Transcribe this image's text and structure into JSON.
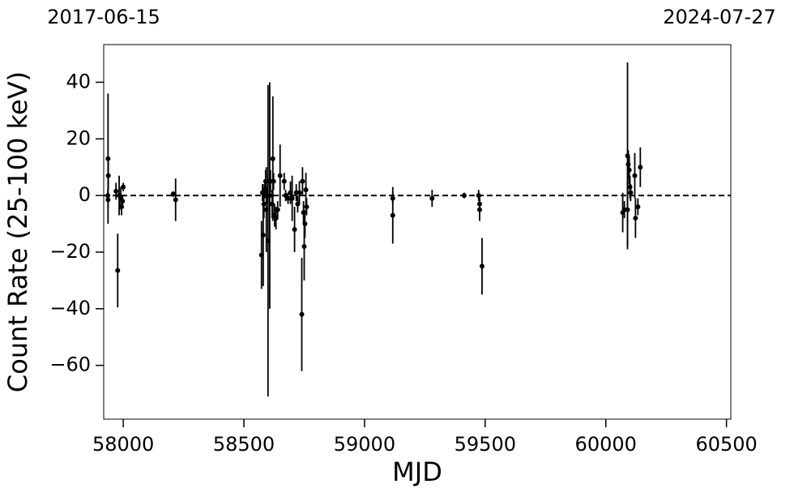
{
  "chart_data": {
    "type": "scatter",
    "xlabel": "MJD",
    "ylabel": "Count Rate (25-100 keV)",
    "xlim": [
      57919,
      60518
    ],
    "ylim": [
      -79,
      53.3
    ],
    "xticks": [
      58000,
      58500,
      59000,
      59500,
      60000,
      60500
    ],
    "yticks": [
      {
        "value": -60,
        "label": "−60"
      },
      {
        "value": -40,
        "label": "−40"
      },
      {
        "value": -20,
        "label": "−20"
      },
      0,
      20,
      40
    ],
    "top_xticks": [
      {
        "value": 57919,
        "label": "2017-06-15"
      },
      {
        "value": 60518,
        "label": "2024-07-27"
      }
    ],
    "hline": 0,
    "color": "#000000",
    "x": [
      57937,
      57938,
      57936,
      57937,
      57977,
      57970,
      57983,
      57990,
      57997,
      58000,
      57993,
      58207,
      58217,
      58573,
      58577,
      58580,
      58583,
      58587,
      58590,
      58593,
      58597,
      58600,
      58607,
      58610,
      58617,
      58620,
      58623,
      58627,
      58633,
      58640,
      58650,
      58667,
      58673,
      58683,
      58693,
      58700,
      58710,
      58717,
      58723,
      58730,
      58740,
      58743,
      58747,
      58750,
      58753,
      58757,
      58760,
      59117,
      59117,
      59280,
      59413,
      59473,
      59477,
      59477,
      59487,
      60070,
      60077,
      60090,
      60090,
      60093,
      60097,
      60100,
      60103,
      60120,
      60123,
      60133,
      60143
    ],
    "values": [
      13,
      7,
      0,
      -1.5,
      -26.5,
      1.5,
      0,
      -1,
      -2,
      3,
      -4,
      0.5,
      -1.5,
      -21,
      1,
      -14,
      -3,
      2,
      5,
      -5,
      0,
      -16,
      0,
      5,
      -3,
      13,
      5,
      -7,
      -8,
      -5,
      7,
      5,
      0,
      -1,
      1,
      -1,
      -12,
      1,
      -3,
      1,
      -42,
      5,
      -6,
      -18,
      -10,
      2,
      -4,
      -1,
      -7,
      -1,
      0,
      0,
      -3,
      -5,
      -25,
      -6,
      -5,
      -5,
      14,
      11,
      9,
      3,
      1,
      7,
      -8,
      -4,
      10
    ],
    "errors": [
      23,
      5,
      2,
      3,
      13,
      3,
      7,
      4,
      2,
      1.5,
      3,
      1,
      7.5,
      12,
      3,
      18,
      5,
      3,
      4,
      15,
      3,
      55,
      40,
      4,
      5,
      22,
      3,
      4,
      4,
      3,
      11,
      3,
      2,
      2,
      4,
      8,
      8,
      3,
      3,
      4,
      20,
      5,
      4,
      12,
      5,
      6,
      3,
      2,
      10,
      3,
      1,
      2,
      3,
      4,
      10,
      7,
      3,
      13,
      33,
      5,
      5,
      4,
      3,
      8,
      7,
      3,
      7
    ]
  }
}
